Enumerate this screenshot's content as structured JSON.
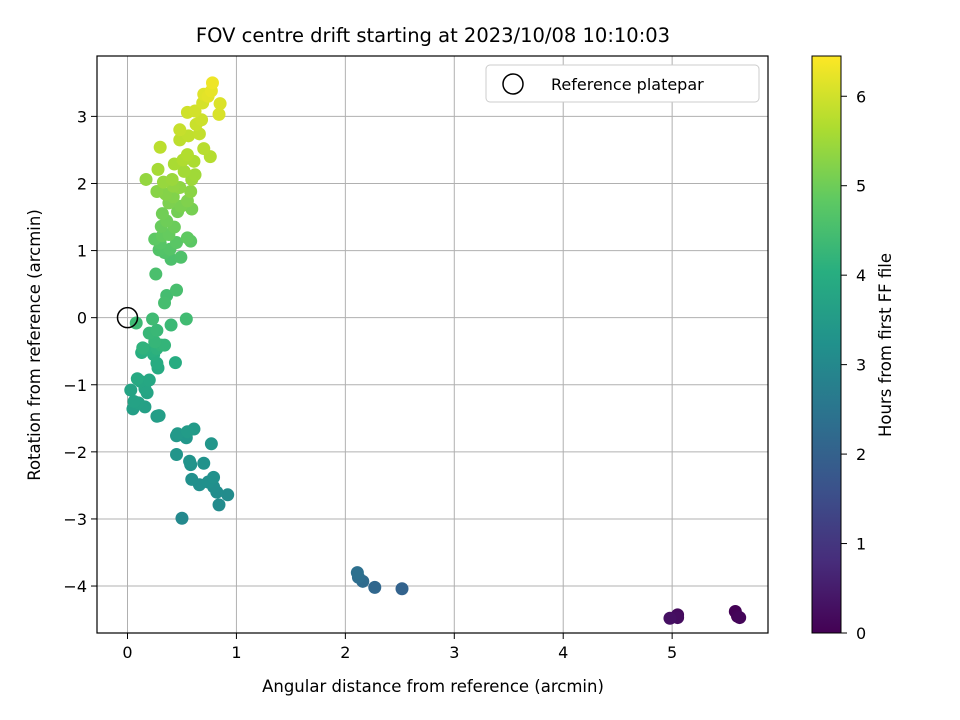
{
  "chart_data": {
    "type": "scatter",
    "title": "FOV centre drift starting at 2023/10/08 10:10:03",
    "xlabel": "Angular distance from reference (arcmin)",
    "ylabel": "Rotation from reference (arcmin)",
    "xlim": [
      -0.28,
      5.88
    ],
    "ylim": [
      -4.7,
      3.9
    ],
    "x_ticks": [
      "0",
      "1",
      "2",
      "3",
      "4",
      "5"
    ],
    "y_ticks": [
      "3",
      "2",
      "1",
      "0",
      "−1",
      "−2",
      "−3",
      "−4"
    ],
    "grid": true,
    "legend": {
      "position": "top-right",
      "entries": [
        "Reference platepar"
      ]
    },
    "reference_point": {
      "x": 0,
      "y": 0
    },
    "colorbar": {
      "label": "Hours from first FF file",
      "colormap": "viridis",
      "range": [
        0,
        6.45
      ],
      "ticks": [
        "0",
        "1",
        "2",
        "3",
        "4",
        "5",
        "6"
      ]
    },
    "series": [
      {
        "points": [
          [
            5.58,
            -4.38,
            0.02
          ],
          [
            5.6,
            -4.45,
            0.06
          ],
          [
            5.62,
            -4.47,
            0.1
          ],
          [
            5.05,
            -4.43,
            0.18
          ],
          [
            5.05,
            -4.47,
            0.22
          ],
          [
            4.98,
            -4.48,
            0.28
          ],
          [
            2.52,
            -4.04,
            2.05
          ],
          [
            2.27,
            -4.02,
            2.15
          ],
          [
            2.16,
            -3.93,
            2.25
          ],
          [
            2.12,
            -3.87,
            2.32
          ],
          [
            2.11,
            -3.8,
            2.38
          ],
          [
            0.5,
            -2.99,
            3.02
          ],
          [
            0.84,
            -2.79,
            3.07
          ],
          [
            0.92,
            -2.64,
            3.1
          ],
          [
            0.82,
            -2.6,
            3.12
          ],
          [
            0.79,
            -2.52,
            3.14
          ],
          [
            0.66,
            -2.49,
            3.17
          ],
          [
            0.74,
            -2.45,
            3.19
          ],
          [
            0.59,
            -2.41,
            3.21
          ],
          [
            0.79,
            -2.38,
            3.23
          ],
          [
            0.7,
            -2.17,
            3.26
          ],
          [
            0.58,
            -2.19,
            3.28
          ],
          [
            0.57,
            -2.14,
            3.3
          ],
          [
            0.45,
            -2.04,
            3.33
          ],
          [
            0.77,
            -1.88,
            3.36
          ],
          [
            0.54,
            -1.79,
            3.39
          ],
          [
            0.45,
            -1.76,
            3.42
          ],
          [
            0.46,
            -1.73,
            3.45
          ],
          [
            0.61,
            -1.66,
            3.48
          ],
          [
            0.55,
            -1.7,
            3.51
          ],
          [
            0.27,
            -1.47,
            3.55
          ],
          [
            0.29,
            -1.46,
            3.58
          ],
          [
            0.05,
            -1.36,
            3.61
          ],
          [
            0.16,
            -1.33,
            3.64
          ],
          [
            0.1,
            -1.27,
            3.67
          ],
          [
            0.06,
            -1.25,
            3.7
          ],
          [
            0.03,
            -1.08,
            3.73
          ],
          [
            0.18,
            -1.12,
            3.76
          ],
          [
            0.16,
            -1.06,
            3.79
          ],
          [
            0.12,
            -0.95,
            3.82
          ],
          [
            0.2,
            -0.93,
            3.85
          ],
          [
            0.09,
            -0.91,
            3.88
          ],
          [
            0.28,
            -0.75,
            3.91
          ],
          [
            0.27,
            -0.68,
            3.94
          ],
          [
            0.44,
            -0.67,
            3.97
          ],
          [
            0.24,
            -0.55,
            4.0
          ],
          [
            0.13,
            -0.52,
            4.03
          ],
          [
            0.23,
            -0.5,
            4.06
          ],
          [
            0.16,
            -0.47,
            4.09
          ],
          [
            0.27,
            -0.46,
            4.12
          ],
          [
            0.14,
            -0.45,
            4.15
          ],
          [
            0.31,
            -0.41,
            4.18
          ],
          [
            0.34,
            -0.41,
            4.21
          ],
          [
            0.25,
            -0.36,
            4.24
          ],
          [
            0.2,
            -0.23,
            4.27
          ],
          [
            0.27,
            -0.19,
            4.3
          ],
          [
            0.4,
            -0.11,
            4.33
          ],
          [
            0.08,
            -0.08,
            4.36
          ],
          [
            0.23,
            -0.02,
            4.39
          ],
          [
            0.54,
            -0.02,
            4.42
          ],
          [
            0.36,
            0.33,
            4.46
          ],
          [
            0.34,
            0.22,
            4.49
          ],
          [
            0.45,
            0.41,
            4.52
          ],
          [
            0.26,
            0.65,
            4.55
          ],
          [
            0.4,
            0.87,
            4.58
          ],
          [
            0.49,
            0.9,
            4.61
          ],
          [
            0.34,
            0.97,
            4.64
          ],
          [
            0.29,
            1.01,
            4.67
          ],
          [
            0.39,
            1.02,
            4.7
          ],
          [
            0.3,
            1.11,
            4.73
          ],
          [
            0.45,
            1.12,
            4.76
          ],
          [
            0.58,
            1.14,
            4.79
          ],
          [
            0.25,
            1.17,
            4.82
          ],
          [
            0.55,
            1.19,
            4.85
          ],
          [
            0.32,
            1.22,
            4.88
          ],
          [
            0.38,
            1.24,
            4.91
          ],
          [
            0.31,
            1.36,
            4.94
          ],
          [
            0.43,
            1.35,
            4.97
          ],
          [
            0.36,
            1.44,
            5.0
          ],
          [
            0.32,
            1.55,
            5.03
          ],
          [
            0.46,
            1.58,
            5.06
          ],
          [
            0.59,
            1.62,
            5.09
          ],
          [
            0.49,
            1.66,
            5.12
          ],
          [
            0.38,
            1.71,
            5.15
          ],
          [
            0.55,
            1.74,
            5.18
          ],
          [
            0.42,
            1.8,
            5.21
          ],
          [
            0.35,
            1.84,
            5.24
          ],
          [
            0.27,
            1.88,
            5.27
          ],
          [
            0.58,
            1.88,
            5.3
          ],
          [
            0.48,
            1.94,
            5.33
          ],
          [
            0.42,
            1.96,
            5.36
          ],
          [
            0.17,
            2.06,
            5.39
          ],
          [
            0.33,
            2.02,
            5.42
          ],
          [
            0.41,
            2.06,
            5.45
          ],
          [
            0.59,
            2.06,
            5.48
          ],
          [
            0.62,
            2.13,
            5.51
          ],
          [
            0.52,
            2.18,
            5.54
          ],
          [
            0.28,
            2.21,
            5.57
          ],
          [
            0.43,
            2.29,
            5.6
          ],
          [
            0.61,
            2.33,
            5.63
          ],
          [
            0.51,
            2.35,
            5.66
          ],
          [
            0.55,
            2.43,
            5.69
          ],
          [
            0.76,
            2.4,
            5.72
          ],
          [
            0.7,
            2.52,
            5.75
          ],
          [
            0.3,
            2.54,
            5.78
          ],
          [
            0.48,
            2.65,
            5.81
          ],
          [
            0.56,
            2.71,
            5.84
          ],
          [
            0.66,
            2.74,
            5.87
          ],
          [
            0.48,
            2.8,
            5.9
          ],
          [
            0.63,
            2.88,
            5.93
          ],
          [
            0.68,
            2.95,
            5.96
          ],
          [
            0.55,
            3.06,
            5.99
          ],
          [
            0.62,
            3.08,
            6.02
          ],
          [
            0.69,
            3.2,
            6.05
          ],
          [
            0.84,
            3.03,
            6.08
          ],
          [
            0.85,
            3.19,
            6.11
          ],
          [
            0.7,
            3.33,
            6.15
          ],
          [
            0.74,
            3.3,
            6.19
          ],
          [
            0.77,
            3.38,
            6.23
          ],
          [
            0.78,
            3.5,
            6.3
          ]
        ]
      }
    ]
  }
}
